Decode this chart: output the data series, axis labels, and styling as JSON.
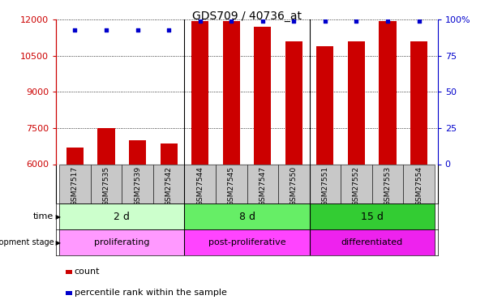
{
  "title": "GDS709 / 40736_at",
  "samples": [
    "GSM27517",
    "GSM27535",
    "GSM27539",
    "GSM27542",
    "GSM27544",
    "GSM27545",
    "GSM27547",
    "GSM27550",
    "GSM27551",
    "GSM27552",
    "GSM27553",
    "GSM27554"
  ],
  "counts": [
    6700,
    7500,
    7000,
    6850,
    11950,
    11950,
    11700,
    11100,
    10900,
    11100,
    11950,
    11100
  ],
  "percentile": [
    93,
    93,
    93,
    93,
    99,
    99,
    99,
    99,
    99,
    99,
    99,
    99
  ],
  "ylim_left": [
    6000,
    12000
  ],
  "yticks_left": [
    6000,
    7500,
    9000,
    10500,
    12000
  ],
  "ylim_right": [
    0,
    100
  ],
  "yticks_right": [
    0,
    25,
    50,
    75,
    100
  ],
  "bar_color": "#cc0000",
  "dot_color": "#0000cc",
  "bg_color": "#ffffff",
  "axis_label_color_left": "#cc0000",
  "axis_label_color_right": "#0000cc",
  "tick_bg_color": "#c8c8c8",
  "groups": [
    {
      "label": "2 d",
      "start": 0,
      "end": 3,
      "time_color": "#ccffcc",
      "stage": "proliferating",
      "stage_color": "#ff99ff"
    },
    {
      "label": "8 d",
      "start": 4,
      "end": 7,
      "time_color": "#66ee66",
      "stage": "post-proliferative",
      "stage_color": "#ff44ff"
    },
    {
      "label": "15 d",
      "start": 8,
      "end": 11,
      "time_color": "#33cc33",
      "stage": "differentiated",
      "stage_color": "#ee22ee"
    }
  ],
  "legend_items": [
    {
      "color": "#cc0000",
      "label": "count"
    },
    {
      "color": "#0000cc",
      "label": "percentile rank within the sample"
    }
  ]
}
